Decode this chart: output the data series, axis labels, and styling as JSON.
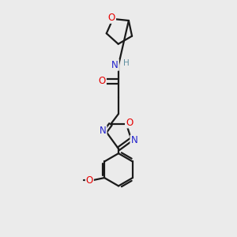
{
  "bg_color": "#ebebeb",
  "bond_color": "#1a1a1a",
  "atom_colors": {
    "O": "#e60000",
    "N": "#2222cc",
    "H": "#5f8fa0",
    "C": "#1a1a1a"
  },
  "line_width": 1.6,
  "font_size_atoms": 8.5,
  "fig_size": [
    3.0,
    3.0
  ],
  "dpi": 100
}
